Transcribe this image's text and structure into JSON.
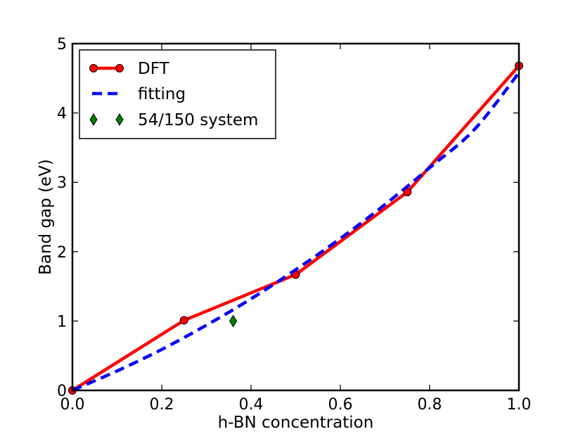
{
  "chart_data": {
    "type": "line",
    "title": "",
    "xlabel": "h-BN concentration",
    "ylabel": "Band gap (eV)",
    "xlim": [
      0.0,
      1.0
    ],
    "ylim": [
      0,
      5
    ],
    "xticks": [
      0.0,
      0.2,
      0.4,
      0.6,
      0.8,
      1.0
    ],
    "xtick_labels": [
      "0.0",
      "0.2",
      "0.4",
      "0.6",
      "0.8",
      "1.0"
    ],
    "yticks": [
      0,
      1,
      2,
      3,
      4,
      5
    ],
    "ytick_labels": [
      "0",
      "1",
      "2",
      "3",
      "4",
      "5"
    ],
    "grid": false,
    "legend_position": "top-left",
    "series": [
      {
        "name": "DFT",
        "style": "solid-line-circle-markers",
        "color": "#ff0000",
        "x": [
          0.0,
          0.25,
          0.5,
          0.75,
          1.0
        ],
        "y": [
          0.0,
          1.01,
          1.67,
          2.86,
          4.68
        ]
      },
      {
        "name": "fitting",
        "style": "dashed-line",
        "color": "#0000ff",
        "x": [
          0.0,
          0.1,
          0.2,
          0.3,
          0.4,
          0.5,
          0.6,
          0.7,
          0.8,
          0.9,
          1.0
        ],
        "y": [
          0.0,
          0.28,
          0.59,
          0.94,
          1.32,
          1.74,
          2.19,
          2.68,
          3.21,
          3.76,
          4.58
        ]
      },
      {
        "name": "54/150 system",
        "style": "diamond-markers",
        "color": "#007f00",
        "x": [
          0.36
        ],
        "y": [
          1.0
        ]
      }
    ]
  }
}
